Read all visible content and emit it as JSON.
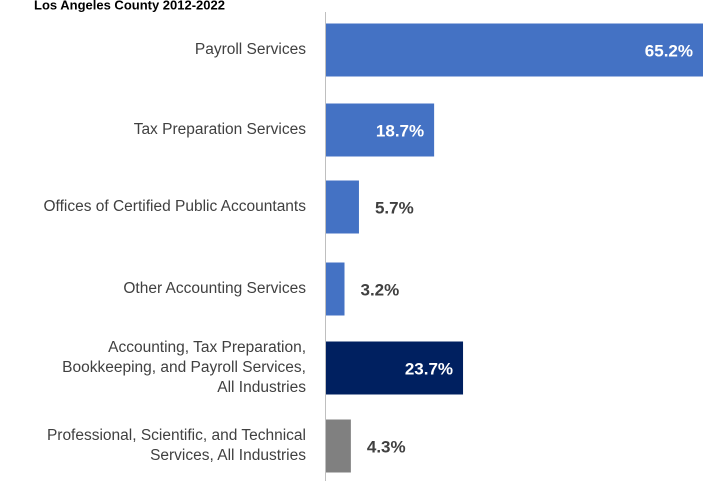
{
  "chart_data": {
    "type": "bar",
    "orientation": "horizontal",
    "title": "Los Angeles County 2012-2022",
    "categories": [
      "Payroll Services",
      "Tax Preparation Services",
      "Offices of Certified Public Accountants",
      "Other Accounting Services",
      "Accounting, Tax Preparation,\nBookkeeping, and Payroll Services,\nAll Industries",
      "Professional, Scientific, and Technical\nServices, All Industries"
    ],
    "values": [
      65.2,
      18.7,
      5.7,
      3.2,
      23.7,
      4.3
    ],
    "value_labels": [
      "65.2%",
      "18.7%",
      "5.7%",
      "3.2%",
      "23.7%",
      "4.3%"
    ],
    "colors": [
      "#4472c4",
      "#4472c4",
      "#4472c4",
      "#4472c4",
      "#002060",
      "#808080"
    ]
  }
}
